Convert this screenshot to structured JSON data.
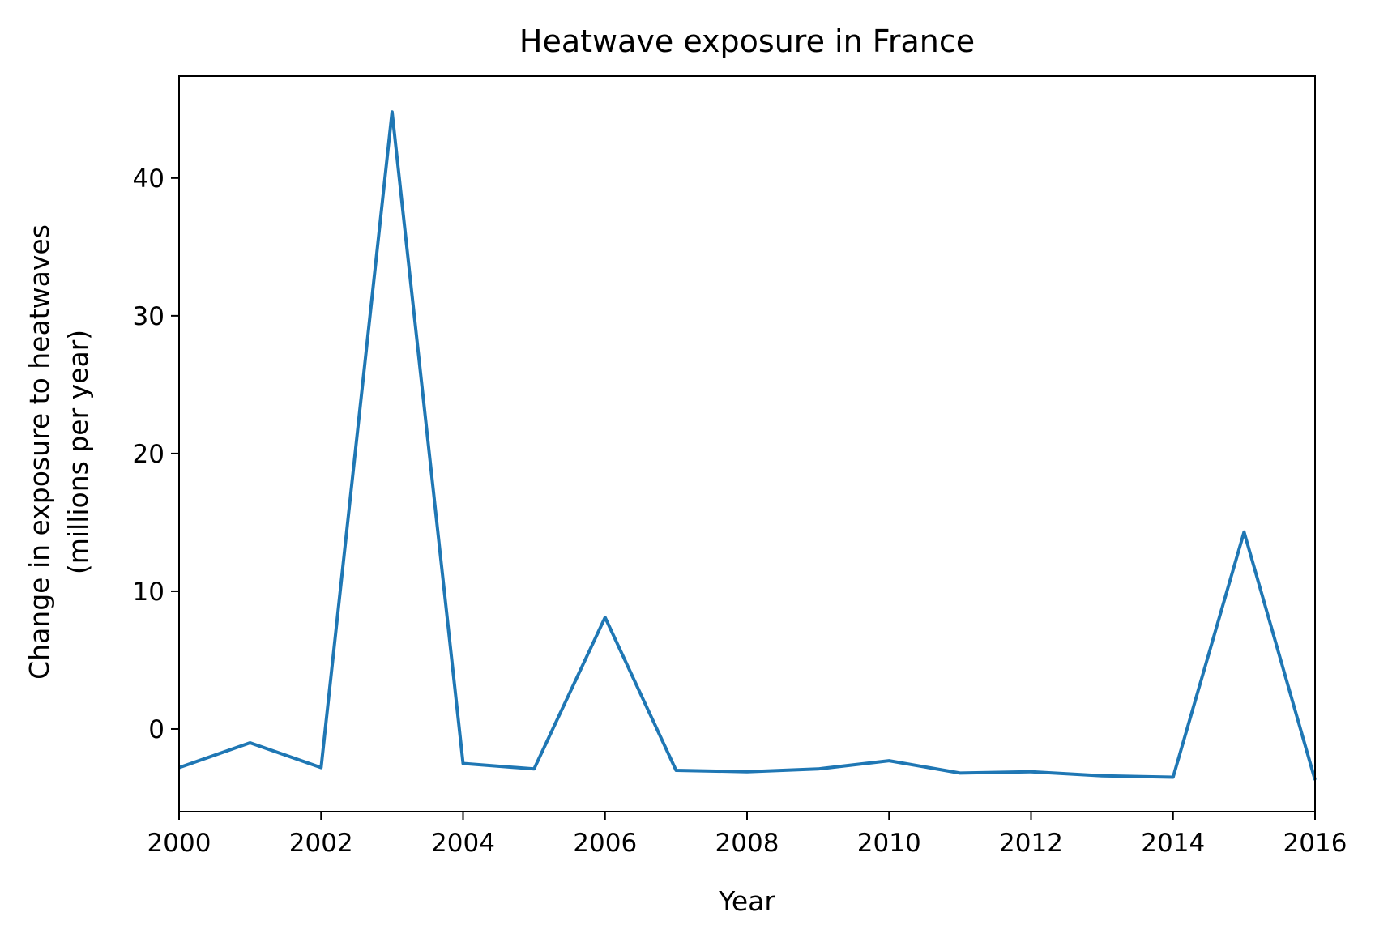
{
  "chart_data": {
    "type": "line",
    "title": "Heatwave exposure in France",
    "xlabel": "Year",
    "ylabel": "Change in exposure to heatwaves",
    "ylabel_line2": "(millions per year)",
    "xlim": [
      2000,
      2016
    ],
    "ylim": [
      -6,
      47.4
    ],
    "x_ticks": [
      2000,
      2002,
      2004,
      2006,
      2008,
      2010,
      2012,
      2014,
      2016
    ],
    "y_ticks": [
      0,
      10,
      20,
      30,
      40
    ],
    "grid": false,
    "series": [
      {
        "color": "#1f77b4",
        "x": [
          2000,
          2001,
          2002,
          2003,
          2004,
          2005,
          2006,
          2007,
          2008,
          2009,
          2010,
          2011,
          2012,
          2013,
          2014,
          2015,
          2016
        ],
        "values": [
          -2.8,
          -1.0,
          -2.8,
          44.8,
          -2.5,
          -2.9,
          8.1,
          -3.0,
          -3.1,
          -2.9,
          -2.3,
          -3.2,
          -3.1,
          -3.4,
          -3.5,
          14.3,
          -3.7
        ]
      }
    ]
  }
}
